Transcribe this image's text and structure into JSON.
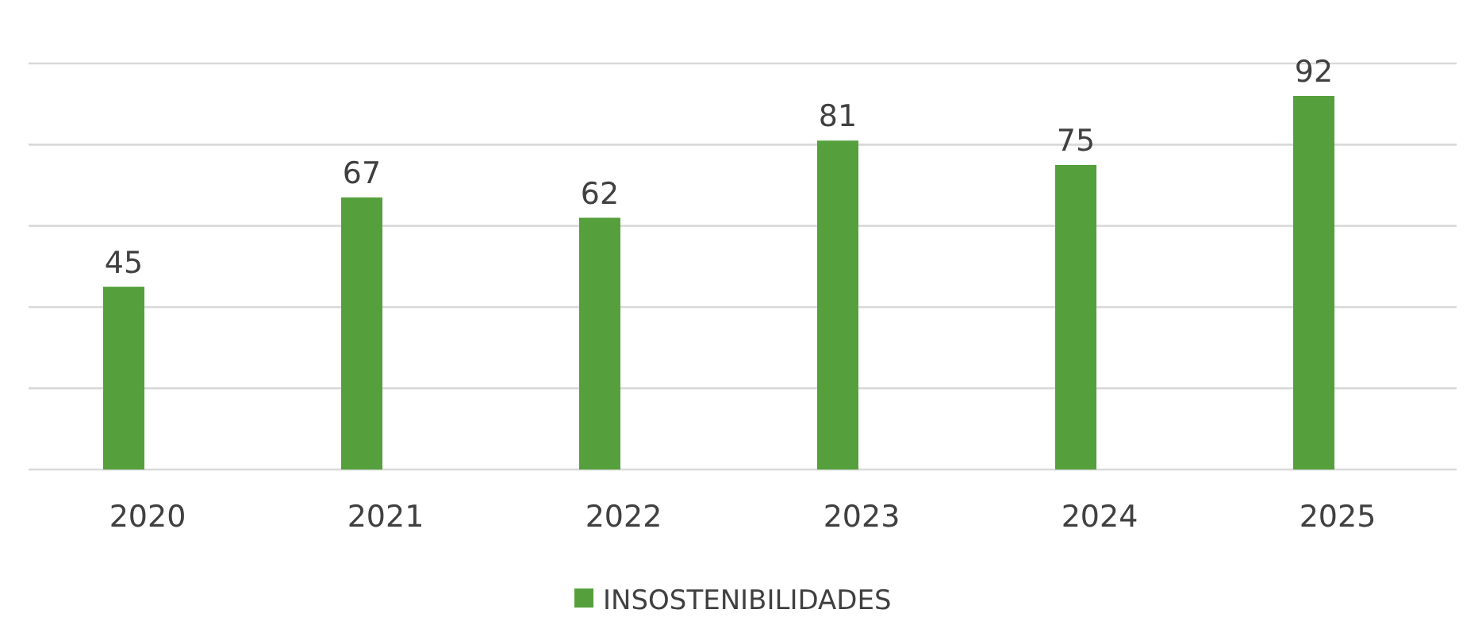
{
  "chart_data": {
    "type": "bar",
    "categories": [
      "2020",
      "2021",
      "2022",
      "2023",
      "2024",
      "2025"
    ],
    "series": [
      {
        "name": "INSOSTENIBILIDADES",
        "color": "#55a03c",
        "values": [
          45,
          67,
          62,
          81,
          75,
          92
        ]
      }
    ],
    "ylim": [
      0,
      100
    ],
    "yticks": [
      {
        "value": 0,
        "label": null
      },
      {
        "value": 20,
        "label": null
      },
      {
        "value": 40,
        "label": null
      },
      {
        "value": 60,
        "label": null
      },
      {
        "value": 80,
        "label": null
      },
      {
        "value": 100,
        "label": null
      }
    ],
    "tick_labels": "x",
    "grid": "y",
    "legend": "bottom",
    "data_labels": true
  }
}
